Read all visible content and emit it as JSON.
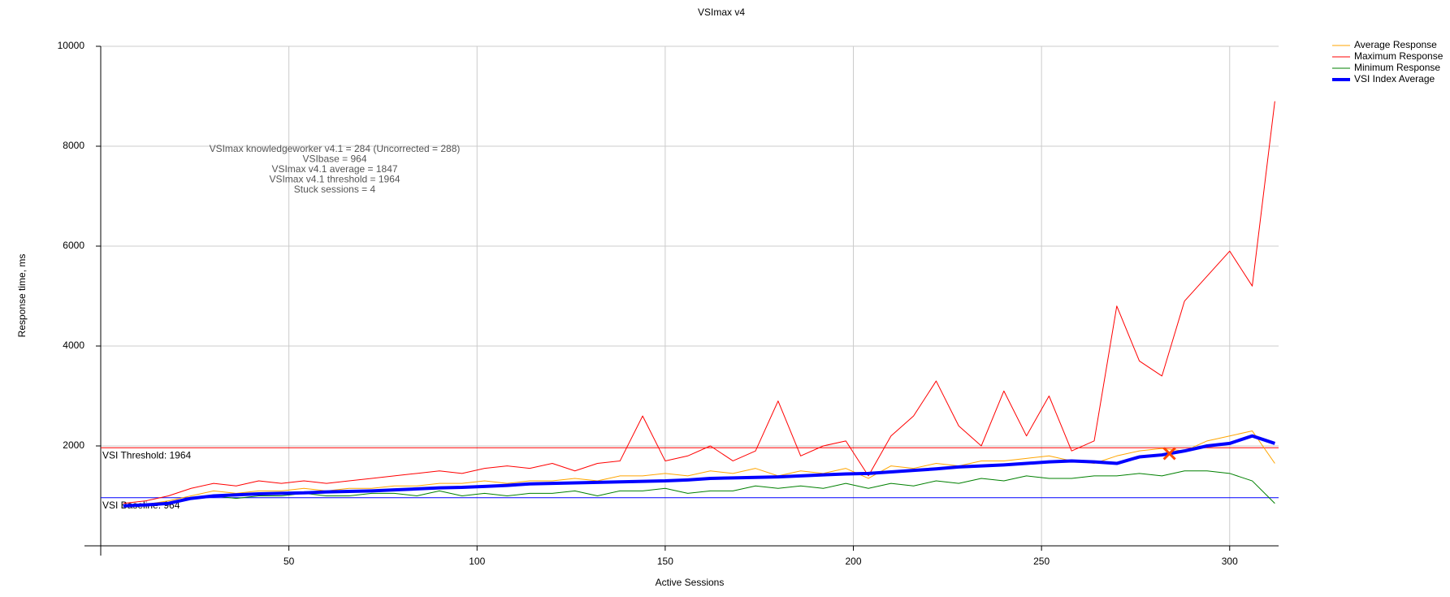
{
  "chart_data": {
    "type": "line",
    "title": "VSImax v4",
    "x_label": "Active Sessions",
    "y_label": "Response time, ms",
    "x": [
      6,
      12,
      18,
      24,
      30,
      36,
      42,
      48,
      54,
      60,
      66,
      72,
      78,
      84,
      90,
      96,
      102,
      108,
      114,
      120,
      126,
      132,
      138,
      144,
      150,
      156,
      162,
      168,
      174,
      180,
      186,
      192,
      198,
      204,
      210,
      216,
      222,
      228,
      234,
      240,
      246,
      252,
      258,
      264,
      270,
      276,
      282,
      288,
      294,
      300,
      306,
      312
    ],
    "series": [
      {
        "name": "Average Response",
        "color": "#ffa500",
        "width": 1,
        "values": [
          800,
          830,
          900,
          1000,
          1100,
          1050,
          1100,
          1100,
          1150,
          1100,
          1150,
          1150,
          1200,
          1200,
          1250,
          1250,
          1300,
          1250,
          1300,
          1300,
          1350,
          1300,
          1400,
          1400,
          1450,
          1400,
          1500,
          1450,
          1550,
          1400,
          1500,
          1450,
          1550,
          1350,
          1600,
          1550,
          1650,
          1600,
          1700,
          1700,
          1750,
          1800,
          1700,
          1650,
          1800,
          1900,
          1950,
          1900,
          2100,
          2200,
          2300,
          1650
        ]
      },
      {
        "name": "Maximum Response",
        "color": "#ff0000",
        "width": 1,
        "values": [
          850,
          900,
          1000,
          1150,
          1250,
          1200,
          1300,
          1250,
          1300,
          1250,
          1300,
          1350,
          1400,
          1450,
          1500,
          1450,
          1550,
          1600,
          1550,
          1650,
          1500,
          1650,
          1700,
          2600,
          1700,
          1800,
          2000,
          1700,
          1900,
          2900,
          1800,
          2000,
          2100,
          1400,
          2200,
          2600,
          3300,
          2400,
          2000,
          3100,
          2200,
          3000,
          1900,
          2100,
          4800,
          3700,
          3400,
          4900,
          5400,
          5900,
          5200,
          8900
        ]
      },
      {
        "name": "Minimum Response",
        "color": "#008000",
        "width": 1,
        "values": [
          800,
          800,
          850,
          950,
          1000,
          950,
          1000,
          1000,
          1050,
          1000,
          1000,
          1050,
          1050,
          1000,
          1100,
          1000,
          1050,
          1000,
          1050,
          1050,
          1100,
          1000,
          1100,
          1100,
          1150,
          1050,
          1100,
          1100,
          1200,
          1150,
          1200,
          1150,
          1250,
          1150,
          1250,
          1200,
          1300,
          1250,
          1350,
          1300,
          1400,
          1350,
          1350,
          1400,
          1400,
          1450,
          1400,
          1500,
          1500,
          1450,
          1300,
          850
        ]
      },
      {
        "name": "VSI Index Average",
        "color": "#0000ff",
        "width": 4,
        "values": [
          800,
          820,
          850,
          950,
          1000,
          1020,
          1040,
          1050,
          1060,
          1080,
          1090,
          1100,
          1120,
          1140,
          1160,
          1170,
          1190,
          1210,
          1240,
          1250,
          1260,
          1270,
          1280,
          1290,
          1300,
          1320,
          1350,
          1360,
          1370,
          1380,
          1400,
          1420,
          1440,
          1450,
          1480,
          1510,
          1540,
          1580,
          1600,
          1620,
          1650,
          1680,
          1700,
          1680,
          1650,
          1780,
          1820,
          1900,
          2000,
          2050,
          2200,
          2050
        ]
      }
    ],
    "xlim": [
      0,
      313
    ],
    "xticks": [
      50,
      100,
      150,
      200,
      250,
      300
    ],
    "ylim": [
      0,
      10000
    ],
    "yticks": [
      2000,
      4000,
      6000,
      8000,
      10000
    ],
    "grid": true,
    "legend": "top-right",
    "threshold_line": {
      "value": 1964,
      "label": "VSI Threshold: 1964",
      "color": "#ff0000"
    },
    "baseline_line": {
      "value": 964,
      "label": "VSI Baseline: 964",
      "color": "#0000ff"
    },
    "vsimax_point": {
      "x": 284,
      "y": 1847,
      "color": "#ff4500"
    },
    "annotations": [
      "VSImax knowledgeworker v4.1 = 284 (Uncorrected = 288)",
      "VSIbase = 964",
      "VSImax v4.1 average = 1847",
      "VSImax v4.1 threshold = 1964",
      "Stuck sessions = 4"
    ]
  }
}
